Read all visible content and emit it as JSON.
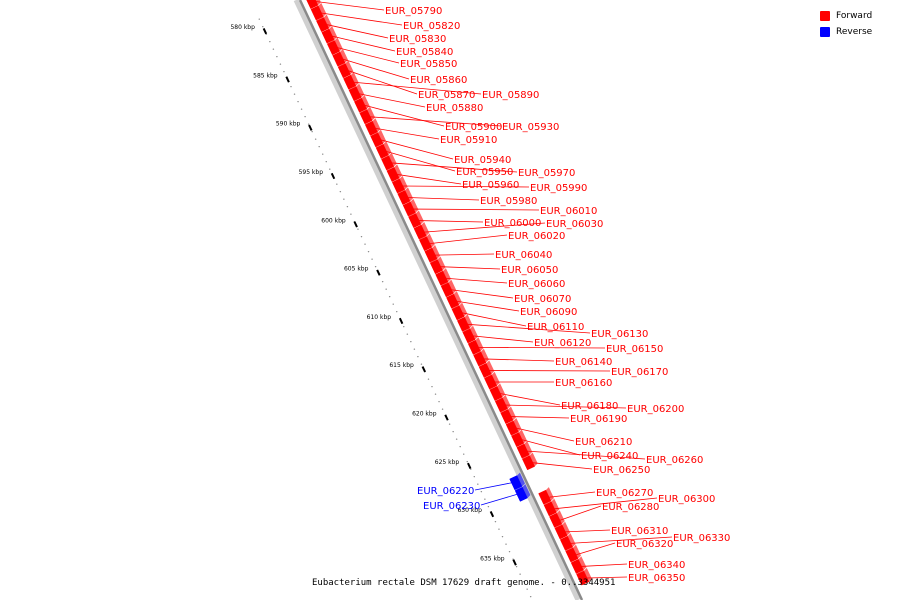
{
  "legend": {
    "forward_label": "Forward",
    "reverse_label": "Reverse",
    "forward_color": "#ff0000",
    "reverse_color": "#0000ff"
  },
  "caption": "Eubacterium rectale DSM 17629 draft genome. - 0..3344951",
  "ticks": [
    "580 kbp",
    "585 kbp",
    "590 kbp",
    "595 kbp",
    "600 kbp",
    "605 kbp",
    "610 kbp",
    "615 kbp",
    "620 kbp",
    "625 kbp",
    "630 kbp",
    "635 kbp"
  ],
  "genes": [
    {
      "id": "EUR_05790",
      "strand": "forward"
    },
    {
      "id": "EUR_05820",
      "strand": "forward"
    },
    {
      "id": "EUR_05830",
      "strand": "forward"
    },
    {
      "id": "EUR_05840",
      "strand": "forward"
    },
    {
      "id": "EUR_05850",
      "strand": "forward"
    },
    {
      "id": "EUR_05860",
      "strand": "forward"
    },
    {
      "id": "EUR_05870",
      "strand": "forward"
    },
    {
      "id": "EUR_05890",
      "strand": "forward"
    },
    {
      "id": "EUR_05880",
      "strand": "forward"
    },
    {
      "id": "EUR_05900",
      "strand": "forward"
    },
    {
      "id": "EUR_05930",
      "strand": "forward"
    },
    {
      "id": "EUR_05910",
      "strand": "forward"
    },
    {
      "id": "EUR_05940",
      "strand": "forward"
    },
    {
      "id": "EUR_05950",
      "strand": "forward"
    },
    {
      "id": "EUR_05970",
      "strand": "forward"
    },
    {
      "id": "EUR_05960",
      "strand": "forward"
    },
    {
      "id": "EUR_05990",
      "strand": "forward"
    },
    {
      "id": "EUR_05980",
      "strand": "forward"
    },
    {
      "id": "EUR_06010",
      "strand": "forward"
    },
    {
      "id": "EUR_06000",
      "strand": "forward"
    },
    {
      "id": "EUR_06030",
      "strand": "forward"
    },
    {
      "id": "EUR_06020",
      "strand": "forward"
    },
    {
      "id": "EUR_06040",
      "strand": "forward"
    },
    {
      "id": "EUR_06050",
      "strand": "forward"
    },
    {
      "id": "EUR_06060",
      "strand": "forward"
    },
    {
      "id": "EUR_06070",
      "strand": "forward"
    },
    {
      "id": "EUR_06090",
      "strand": "forward"
    },
    {
      "id": "EUR_06110",
      "strand": "forward"
    },
    {
      "id": "EUR_06130",
      "strand": "forward"
    },
    {
      "id": "EUR_06120",
      "strand": "forward"
    },
    {
      "id": "EUR_06150",
      "strand": "forward"
    },
    {
      "id": "EUR_06140",
      "strand": "forward"
    },
    {
      "id": "EUR_06170",
      "strand": "forward"
    },
    {
      "id": "EUR_06160",
      "strand": "forward"
    },
    {
      "id": "EUR_06180",
      "strand": "forward"
    },
    {
      "id": "EUR_06200",
      "strand": "forward"
    },
    {
      "id": "EUR_06190",
      "strand": "forward"
    },
    {
      "id": "EUR_06210",
      "strand": "forward"
    },
    {
      "id": "EUR_06240",
      "strand": "forward"
    },
    {
      "id": "EUR_06260",
      "strand": "forward"
    },
    {
      "id": "EUR_06250",
      "strand": "forward"
    },
    {
      "id": "EUR_06220",
      "strand": "reverse"
    },
    {
      "id": "EUR_06230",
      "strand": "reverse"
    },
    {
      "id": "EUR_06270",
      "strand": "forward"
    },
    {
      "id": "EUR_06300",
      "strand": "forward"
    },
    {
      "id": "EUR_06280",
      "strand": "forward"
    },
    {
      "id": "EUR_06310",
      "strand": "forward"
    },
    {
      "id": "EUR_06330",
      "strand": "forward"
    },
    {
      "id": "EUR_06320",
      "strand": "forward"
    },
    {
      "id": "EUR_06340",
      "strand": "forward"
    },
    {
      "id": "EUR_06350",
      "strand": "forward"
    }
  ]
}
